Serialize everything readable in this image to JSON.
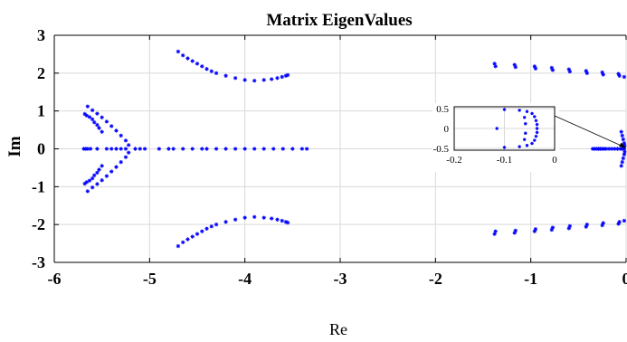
{
  "chart_data": {
    "type": "scatter",
    "title": "Matrix EigenValues",
    "xlabel": "Re",
    "ylabel": "Im",
    "xlim": [
      -6,
      0
    ],
    "ylim": [
      -3,
      3
    ],
    "grid": true,
    "marker": "*",
    "marker_color": "#0000ff",
    "xticks": [
      -6,
      -5,
      -4,
      -3,
      -2,
      -1,
      0
    ],
    "xtick_labels": [
      "-6",
      "-5",
      "-4",
      "-3",
      "-2",
      "-1",
      "0"
    ],
    "yticks": [
      -3,
      -2,
      -1,
      0,
      1,
      2,
      3
    ],
    "ytick_labels": [
      "-3",
      "-2",
      "-1",
      "0",
      "1",
      "2",
      "3"
    ],
    "series": [
      {
        "values": [
          [
            -5.69,
            0
          ],
          [
            -5.67,
            0
          ],
          [
            -5.65,
            0
          ],
          [
            -5.62,
            0
          ],
          [
            -5.55,
            0
          ],
          [
            -5.45,
            0
          ],
          [
            -5.4,
            0
          ],
          [
            -5.35,
            0
          ],
          [
            -5.3,
            0
          ],
          [
            -5.25,
            0
          ],
          [
            -5.15,
            0
          ],
          [
            -5.1,
            0
          ],
          [
            -5.05,
            0
          ],
          [
            -4.9,
            0
          ],
          [
            -4.8,
            0
          ],
          [
            -4.75,
            0
          ],
          [
            -4.65,
            0
          ],
          [
            -4.55,
            0
          ],
          [
            -4.45,
            0
          ],
          [
            -4.4,
            0
          ],
          [
            -4.3,
            0
          ],
          [
            -4.2,
            0
          ],
          [
            -4.1,
            0
          ],
          [
            -4.0,
            0
          ],
          [
            -3.9,
            0
          ],
          [
            -3.8,
            0
          ],
          [
            -3.7,
            0
          ],
          [
            -3.6,
            0
          ],
          [
            -3.5,
            0
          ],
          [
            -3.4,
            0
          ],
          [
            -3.35,
            0
          ],
          [
            -5.65,
            1.12
          ],
          [
            -5.6,
            1.02
          ],
          [
            -5.55,
            0.93
          ],
          [
            -5.5,
            0.83
          ],
          [
            -5.45,
            0.72
          ],
          [
            -5.4,
            0.6
          ],
          [
            -5.35,
            0.48
          ],
          [
            -5.3,
            0.35
          ],
          [
            -5.25,
            0.22
          ],
          [
            -5.22,
            0.1
          ],
          [
            -5.65,
            -1.12
          ],
          [
            -5.6,
            -1.02
          ],
          [
            -5.55,
            -0.93
          ],
          [
            -5.5,
            -0.83
          ],
          [
            -5.45,
            -0.72
          ],
          [
            -5.4,
            -0.6
          ],
          [
            -5.35,
            -0.48
          ],
          [
            -5.3,
            -0.35
          ],
          [
            -5.25,
            -0.22
          ],
          [
            -5.22,
            -0.1
          ],
          [
            -5.68,
            0.92
          ],
          [
            -5.66,
            0.88
          ],
          [
            -5.63,
            0.84
          ],
          [
            -5.6,
            0.78
          ],
          [
            -5.58,
            0.7
          ],
          [
            -5.55,
            0.63
          ],
          [
            -5.53,
            0.55
          ],
          [
            -5.5,
            0.45
          ],
          [
            -5.68,
            -0.92
          ],
          [
            -5.66,
            -0.88
          ],
          [
            -5.63,
            -0.84
          ],
          [
            -5.6,
            -0.78
          ],
          [
            -5.58,
            -0.7
          ],
          [
            -5.55,
            -0.63
          ],
          [
            -5.53,
            -0.55
          ],
          [
            -5.5,
            -0.45
          ],
          [
            -4.7,
            2.57
          ],
          [
            -4.65,
            2.47
          ],
          [
            -4.6,
            2.39
          ],
          [
            -4.55,
            2.32
          ],
          [
            -4.5,
            2.25
          ],
          [
            -4.45,
            2.18
          ],
          [
            -4.4,
            2.11
          ],
          [
            -4.35,
            2.05
          ],
          [
            -4.3,
            2.0
          ],
          [
            -4.2,
            1.93
          ],
          [
            -4.1,
            1.87
          ],
          [
            -4.0,
            1.82
          ],
          [
            -3.9,
            1.8
          ],
          [
            -3.8,
            1.82
          ],
          [
            -3.72,
            1.84
          ],
          [
            -3.66,
            1.87
          ],
          [
            -3.61,
            1.9
          ],
          [
            -3.57,
            1.93
          ],
          [
            -3.55,
            1.95
          ],
          [
            -4.7,
            -2.57
          ],
          [
            -4.65,
            -2.47
          ],
          [
            -4.6,
            -2.39
          ],
          [
            -4.55,
            -2.32
          ],
          [
            -4.5,
            -2.25
          ],
          [
            -4.45,
            -2.18
          ],
          [
            -4.4,
            -2.11
          ],
          [
            -4.35,
            -2.05
          ],
          [
            -4.3,
            -2.0
          ],
          [
            -4.2,
            -1.93
          ],
          [
            -4.1,
            -1.87
          ],
          [
            -4.0,
            -1.82
          ],
          [
            -3.9,
            -1.8
          ],
          [
            -3.8,
            -1.82
          ],
          [
            -3.72,
            -1.84
          ],
          [
            -3.66,
            -1.87
          ],
          [
            -3.61,
            -1.9
          ],
          [
            -3.57,
            -1.93
          ],
          [
            -3.55,
            -1.95
          ],
          [
            -1.38,
            2.25
          ],
          [
            -1.37,
            2.18
          ],
          [
            -1.17,
            2.22
          ],
          [
            -1.16,
            2.16
          ],
          [
            -0.96,
            2.18
          ],
          [
            -0.95,
            2.12
          ],
          [
            -0.78,
            2.14
          ],
          [
            -0.77,
            2.08
          ],
          [
            -0.6,
            2.1
          ],
          [
            -0.59,
            2.04
          ],
          [
            -0.42,
            2.06
          ],
          [
            -0.41,
            2.0
          ],
          [
            -0.25,
            2.02
          ],
          [
            -0.24,
            1.96
          ],
          [
            -0.08,
            1.98
          ],
          [
            -0.07,
            1.93
          ],
          [
            -0.02,
            1.9
          ],
          [
            -1.38,
            -2.25
          ],
          [
            -1.37,
            -2.18
          ],
          [
            -1.17,
            -2.22
          ],
          [
            -1.16,
            -2.16
          ],
          [
            -0.96,
            -2.18
          ],
          [
            -0.95,
            -2.12
          ],
          [
            -0.78,
            -2.14
          ],
          [
            -0.77,
            -2.08
          ],
          [
            -0.6,
            -2.1
          ],
          [
            -0.59,
            -2.04
          ],
          [
            -0.42,
            -2.06
          ],
          [
            -0.41,
            -2.0
          ],
          [
            -0.25,
            -2.02
          ],
          [
            -0.24,
            -1.96
          ],
          [
            -0.08,
            -1.98
          ],
          [
            -0.07,
            -1.93
          ],
          [
            -0.02,
            -1.9
          ],
          [
            -0.35,
            0
          ],
          [
            -0.33,
            0
          ],
          [
            -0.31,
            0
          ],
          [
            -0.29,
            0
          ],
          [
            -0.27,
            0
          ],
          [
            -0.25,
            0
          ],
          [
            -0.23,
            0
          ],
          [
            -0.21,
            0
          ],
          [
            -0.18,
            0
          ],
          [
            -0.15,
            0
          ],
          [
            -0.12,
            0
          ],
          [
            -0.09,
            0
          ],
          [
            -0.06,
            0
          ],
          [
            -0.04,
            0
          ],
          [
            -0.02,
            0
          ],
          [
            -0.05,
            0.45
          ],
          [
            -0.04,
            0.35
          ],
          [
            -0.03,
            0.25
          ],
          [
            -0.02,
            0.15
          ],
          [
            -0.015,
            0.08
          ],
          [
            -0.05,
            -0.45
          ],
          [
            -0.04,
            -0.35
          ],
          [
            -0.03,
            -0.25
          ],
          [
            -0.02,
            -0.15
          ],
          [
            -0.015,
            -0.08
          ]
        ]
      }
    ],
    "inset": {
      "xlim": [
        -0.2,
        0
      ],
      "ylim": [
        -0.55,
        0.55
      ],
      "xticks": [
        -0.2,
        -0.1,
        0
      ],
      "xtick_labels": [
        "-0.2",
        "-0.1",
        "0"
      ],
      "yticks": [
        -0.5,
        0,
        0.5
      ],
      "ytick_labels": [
        "-0.5",
        "0",
        "0.5"
      ],
      "grid": true,
      "values": [
        [
          -0.1,
          0.48
        ],
        [
          -0.1,
          -0.48
        ],
        [
          -0.115,
          0
        ],
        [
          -0.07,
          0.46
        ],
        [
          -0.055,
          0.43
        ],
        [
          -0.045,
          0.38
        ],
        [
          -0.04,
          0.3
        ],
        [
          -0.037,
          0.2
        ],
        [
          -0.035,
          0.1
        ],
        [
          -0.035,
          0
        ],
        [
          -0.035,
          -0.1
        ],
        [
          -0.037,
          -0.2
        ],
        [
          -0.04,
          -0.3
        ],
        [
          -0.045,
          -0.38
        ],
        [
          -0.055,
          -0.43
        ],
        [
          -0.07,
          -0.46
        ],
        [
          -0.06,
          0.28
        ],
        [
          -0.058,
          0.12
        ],
        [
          -0.06,
          -0.28
        ],
        [
          -0.058,
          -0.12
        ]
      ]
    }
  }
}
